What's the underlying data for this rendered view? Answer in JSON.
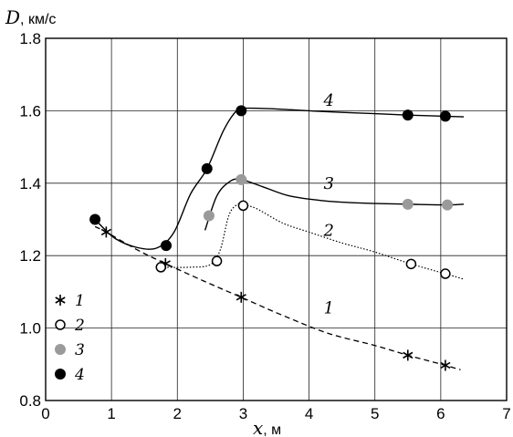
{
  "chart_data": {
    "type": "line",
    "xlabel": "x",
    "xunit": ", м",
    "ylabel": "D",
    "yunit": ", км/с",
    "xlim": [
      0,
      7
    ],
    "ylim": [
      0.8,
      1.8
    ],
    "xticks": [
      "0",
      "1",
      "2",
      "3",
      "4",
      "5",
      "6",
      "7"
    ],
    "yticks": [
      "0.8",
      "1.0",
      "1.2",
      "1.4",
      "1.6",
      "1.8"
    ],
    "grid": true,
    "legend_position": "bottom-left",
    "series": [
      {
        "name": "1",
        "marker": "asterisk",
        "line": "dashed",
        "color": "#000000",
        "points": [
          [
            0.92,
            1.265
          ],
          [
            1.82,
            1.178
          ],
          [
            2.97,
            1.085
          ],
          [
            5.5,
            0.925
          ],
          [
            6.07,
            0.897
          ]
        ],
        "curve": [
          [
            0.75,
            1.28
          ],
          [
            0.92,
            1.265
          ],
          [
            1.4,
            1.215
          ],
          [
            1.82,
            1.178
          ],
          [
            2.4,
            1.13
          ],
          [
            2.97,
            1.085
          ],
          [
            3.6,
            1.035
          ],
          [
            4.3,
            0.985
          ],
          [
            5.0,
            0.952
          ],
          [
            5.5,
            0.925
          ],
          [
            6.07,
            0.897
          ],
          [
            6.3,
            0.885
          ]
        ]
      },
      {
        "name": "2",
        "marker": "open-circle",
        "line": "dotted",
        "color": "#000000",
        "points": [
          [
            1.75,
            1.168
          ],
          [
            2.6,
            1.185
          ],
          [
            3.0,
            1.338
          ],
          [
            5.55,
            1.177
          ],
          [
            6.07,
            1.15
          ]
        ],
        "curve": [
          [
            1.75,
            1.168
          ],
          [
            2.2,
            1.168
          ],
          [
            2.5,
            1.175
          ],
          [
            2.65,
            1.215
          ],
          [
            2.78,
            1.31
          ],
          [
            2.9,
            1.34
          ],
          [
            3.0,
            1.34
          ],
          [
            3.2,
            1.33
          ],
          [
            3.6,
            1.29
          ],
          [
            4.0,
            1.265
          ],
          [
            4.5,
            1.235
          ],
          [
            5.0,
            1.21
          ],
          [
            5.55,
            1.177
          ],
          [
            6.07,
            1.15
          ],
          [
            6.35,
            1.135
          ]
        ]
      },
      {
        "name": "3",
        "marker": "gray-circle",
        "line": "solid",
        "color": "#9a9a9a",
        "points": [
          [
            2.48,
            1.31
          ],
          [
            2.97,
            1.41
          ],
          [
            5.5,
            1.342
          ],
          [
            6.1,
            1.34
          ]
        ],
        "curve": [
          [
            2.42,
            1.27
          ],
          [
            2.6,
            1.365
          ],
          [
            2.8,
            1.405
          ],
          [
            2.97,
            1.41
          ],
          [
            3.3,
            1.39
          ],
          [
            3.7,
            1.365
          ],
          [
            4.2,
            1.352
          ],
          [
            4.8,
            1.345
          ],
          [
            5.5,
            1.342
          ],
          [
            6.1,
            1.34
          ],
          [
            6.35,
            1.342
          ]
        ]
      },
      {
        "name": "4",
        "marker": "filled-circle",
        "line": "solid",
        "color": "#000000",
        "points": [
          [
            0.75,
            1.3
          ],
          [
            1.83,
            1.228
          ],
          [
            2.45,
            1.44
          ],
          [
            2.97,
            1.6
          ],
          [
            5.5,
            1.588
          ],
          [
            6.07,
            1.585
          ]
        ],
        "curve": [
          [
            0.75,
            1.3
          ],
          [
            1.05,
            1.248
          ],
          [
            1.4,
            1.222
          ],
          [
            1.7,
            1.222
          ],
          [
            1.95,
            1.265
          ],
          [
            2.2,
            1.37
          ],
          [
            2.45,
            1.44
          ],
          [
            2.7,
            1.545
          ],
          [
            2.9,
            1.6
          ],
          [
            3.05,
            1.607
          ],
          [
            3.5,
            1.605
          ],
          [
            4.2,
            1.598
          ],
          [
            5.0,
            1.592
          ],
          [
            5.5,
            1.588
          ],
          [
            6.07,
            1.585
          ],
          [
            6.35,
            1.583
          ]
        ]
      }
    ],
    "curve_labels": [
      {
        "text": "1",
        "x": 4.3,
        "y": 1.04
      },
      {
        "text": "2",
        "x": 4.3,
        "y": 1.255
      },
      {
        "text": "3",
        "x": 4.3,
        "y": 1.385
      },
      {
        "text": "4",
        "x": 4.3,
        "y": 1.613
      }
    ],
    "legend": [
      {
        "marker": "asterisk",
        "label": "1"
      },
      {
        "marker": "open-circle",
        "label": "2"
      },
      {
        "marker": "gray-circle",
        "label": "3"
      },
      {
        "marker": "filled-circle",
        "label": "4"
      }
    ]
  }
}
